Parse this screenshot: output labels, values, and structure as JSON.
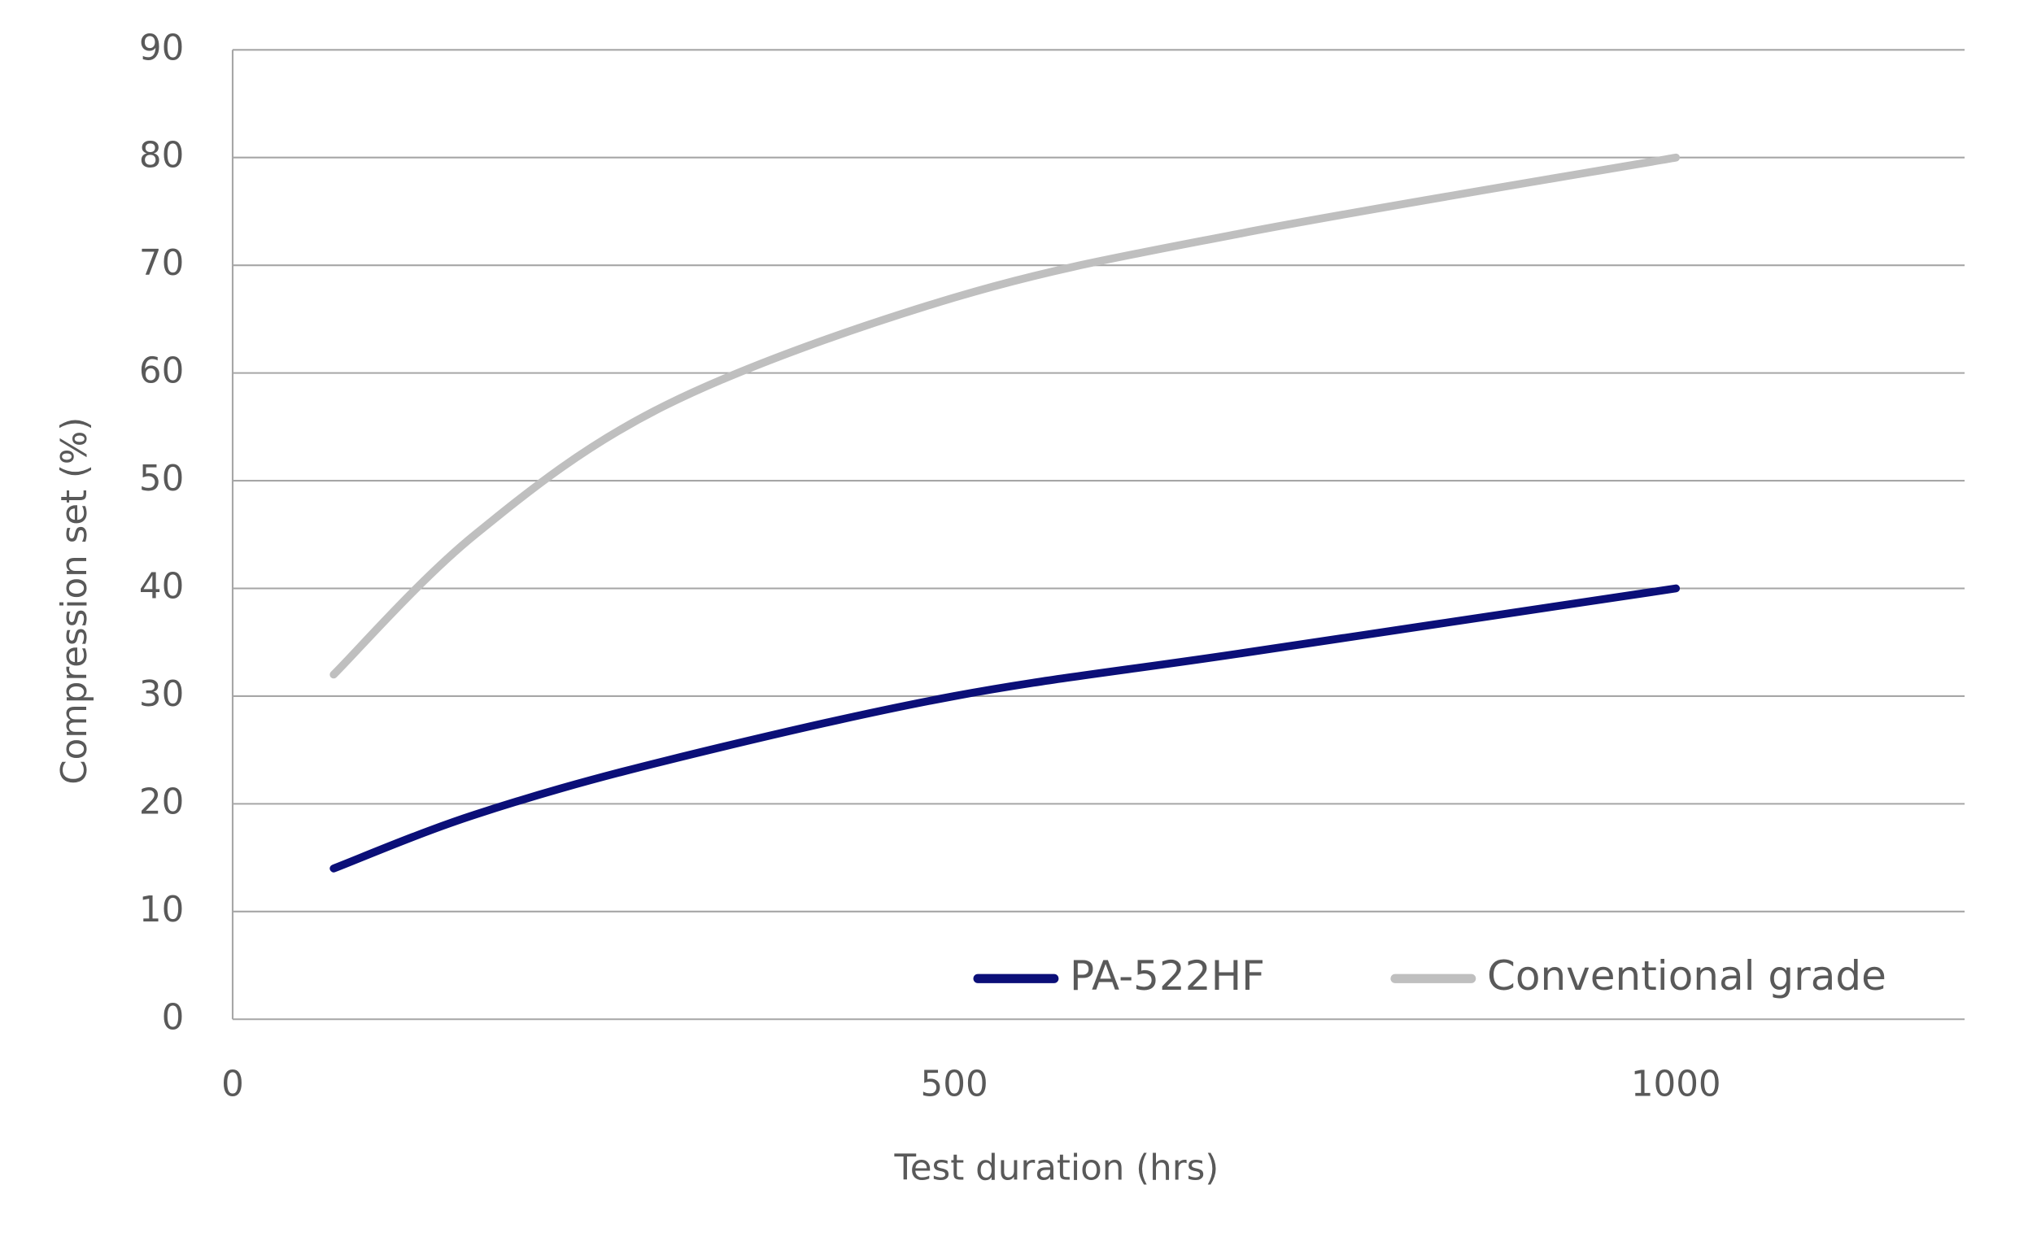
{
  "chart_data": {
    "type": "line",
    "x_label": "Test duration (hrs)",
    "y_label": "Compression set (%)",
    "x": [
      70,
      168,
      300,
      500,
      700,
      1000
    ],
    "series": [
      {
        "name": "PA-522HF",
        "color": "#0b0f78",
        "values": [
          14,
          19,
          24,
          30,
          34,
          40
        ]
      },
      {
        "name": "Conventional grade",
        "color": "#bfbfbf",
        "values": [
          32,
          45,
          57,
          67,
          73,
          80
        ]
      }
    ],
    "xlim": [
      0,
      1200
    ],
    "xticks": [
      0,
      500,
      1000
    ],
    "ylim": [
      0,
      90
    ],
    "yticks": [
      0,
      10,
      20,
      30,
      40,
      50,
      60,
      70,
      80,
      90
    ],
    "grid": true,
    "legend": "lower right"
  }
}
